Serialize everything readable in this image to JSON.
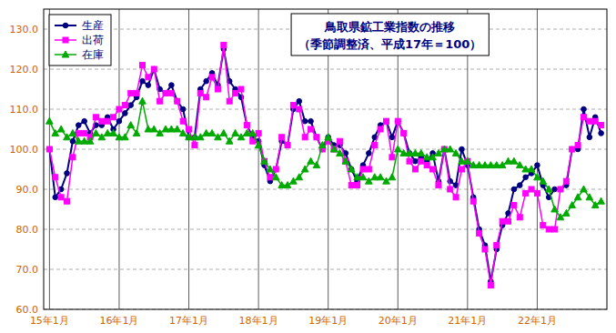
{
  "chart_data": {
    "type": "line",
    "title": "鳥取県鉱工業指数の推移",
    "subtitle": "（季節調整済、平成17年＝100）",
    "categories": [
      "15年1月",
      null,
      null,
      null,
      null,
      null,
      null,
      null,
      null,
      null,
      null,
      null,
      "16年1月",
      null,
      null,
      null,
      null,
      null,
      null,
      null,
      null,
      null,
      null,
      null,
      "17年1月",
      null,
      null,
      null,
      null,
      null,
      null,
      null,
      null,
      null,
      null,
      null,
      "18年1月",
      null,
      null,
      null,
      null,
      null,
      null,
      null,
      null,
      null,
      null,
      null,
      "19年1月",
      null,
      null,
      null,
      null,
      null,
      null,
      null,
      null,
      null,
      null,
      null,
      "20年1月",
      null,
      null,
      null,
      null,
      null,
      null,
      null,
      null,
      null,
      null,
      null,
      "21年1月",
      null,
      null,
      null,
      null,
      null,
      null,
      null,
      null,
      null,
      null,
      null,
      "22年1月",
      null,
      null,
      null,
      null,
      null,
      null,
      null,
      null,
      null,
      null,
      null
    ],
    "series": [
      {
        "name": "生産",
        "color": "#000080",
        "marker": "circle",
        "values": [
          100.0,
          88.0,
          90.0,
          94.0,
          102.0,
          106.0,
          107.0,
          104.0,
          106.0,
          106.0,
          108.0,
          105.0,
          107.0,
          109.0,
          111.0,
          113.0,
          117.0,
          116.0,
          120.0,
          115.0,
          114.0,
          116.0,
          112.0,
          110.0,
          103.0,
          103.0,
          115.0,
          117.0,
          119.0,
          116.0,
          125.0,
          117.0,
          115.0,
          113.0,
          106.0,
          103.0,
          102.0,
          96.0,
          92.0,
          95.0,
          102.0,
          101.0,
          110.0,
          112.0,
          107.0,
          107.0,
          103.0,
          100.0,
          103.0,
          101.0,
          101.0,
          99.0,
          95.0,
          92.0,
          96.0,
          99.0,
          103.0,
          106.0,
          107.0,
          103.0,
          107.0,
          104.0,
          99.0,
          97.0,
          98.0,
          97.0,
          99.0,
          92.0,
          100.0,
          92.0,
          91.0,
          100.0,
          96.0,
          88.0,
          80.0,
          76.0,
          67.0,
          75.0,
          81.0,
          84.0,
          90.0,
          91.0,
          93.0,
          94.0,
          96.0,
          91.0,
          88.0,
          90.0,
          90.0,
          91.0,
          100.0,
          100.0,
          110.0,
          103.0,
          108.0,
          104.0
        ]
      },
      {
        "name": "出荷",
        "color": "#ff00ff",
        "marker": "square",
        "values": [
          100.0,
          93.0,
          88.0,
          87.0,
          98.0,
          104.0,
          104.0,
          103.0,
          108.0,
          107.0,
          107.0,
          108.0,
          110.0,
          111.0,
          114.0,
          114.0,
          121.0,
          118.0,
          120.0,
          112.0,
          114.0,
          114.0,
          112.0,
          107.0,
          105.0,
          101.0,
          114.0,
          113.0,
          118.0,
          115.0,
          126.0,
          112.0,
          114.0,
          115.0,
          106.0,
          102.0,
          104.0,
          97.0,
          93.0,
          95.0,
          103.0,
          101.0,
          111.0,
          110.0,
          103.0,
          105.0,
          103.0,
          100.0,
          102.0,
          100.0,
          102.0,
          97.0,
          91.0,
          91.0,
          95.0,
          95.0,
          101.0,
          105.0,
          107.0,
          98.0,
          107.0,
          104.0,
          97.0,
          95.0,
          97.0,
          96.0,
          95.0,
          91.0,
          100.0,
          90.0,
          88.0,
          95.0,
          97.0,
          87.0,
          79.0,
          75.0,
          66.0,
          76.0,
          82.0,
          82.0,
          86.0,
          83.0,
          89.0,
          90.0,
          89.0,
          81.0,
          80.0,
          80.0,
          90.0,
          92.0,
          100.0,
          101.0,
          108.0,
          107.0,
          107.0,
          106.0
        ]
      },
      {
        "name": "在庫",
        "color": "#00aa00",
        "marker": "triangle",
        "values": [
          107.0,
          104.0,
          105.0,
          103.0,
          104.0,
          102.0,
          102.0,
          102.0,
          104.0,
          103.0,
          104.0,
          104.0,
          103.0,
          103.0,
          106.0,
          104.0,
          112.0,
          105.0,
          105.0,
          104.0,
          105.0,
          105.0,
          105.0,
          104.0,
          103.0,
          103.0,
          103.0,
          104.0,
          104.0,
          103.0,
          104.0,
          102.0,
          104.0,
          103.0,
          104.0,
          104.0,
          101.0,
          97.0,
          95.0,
          93.0,
          91.0,
          91.0,
          92.0,
          93.0,
          95.0,
          97.0,
          96.0,
          101.0,
          103.0,
          100.0,
          99.0,
          97.0,
          95.0,
          93.0,
          93.0,
          92.0,
          93.0,
          93.0,
          92.0,
          93.0,
          100.0,
          99.0,
          99.0,
          99.0,
          99.0,
          98.0,
          98.0,
          99.0,
          100.0,
          100.0,
          99.0,
          97.0,
          97.0,
          96.0,
          96.0,
          96.0,
          96.0,
          96.0,
          96.0,
          97.0,
          97.0,
          96.0,
          95.0,
          95.0,
          93.0,
          92.0,
          90.0,
          85.0,
          83.0,
          84.0,
          86.0,
          88.0,
          90.0,
          88.0,
          86.0,
          87.0
        ]
      }
    ],
    "ylim": [
      60.0,
      135.0
    ],
    "yticks": [
      {
        "value": 60.0,
        "label": "60.0"
      },
      {
        "value": 70.0,
        "label": "70.0"
      },
      {
        "value": 80.0,
        "label": "80.0"
      },
      {
        "value": 90.0,
        "label": "90.0"
      },
      {
        "value": 100.0,
        "label": "100.0"
      },
      {
        "value": 110.0,
        "label": "110.0"
      },
      {
        "value": 120.0,
        "label": "120.0"
      },
      {
        "value": 130.0,
        "label": "130.0"
      }
    ],
    "grid": true,
    "legend": "top-left"
  }
}
